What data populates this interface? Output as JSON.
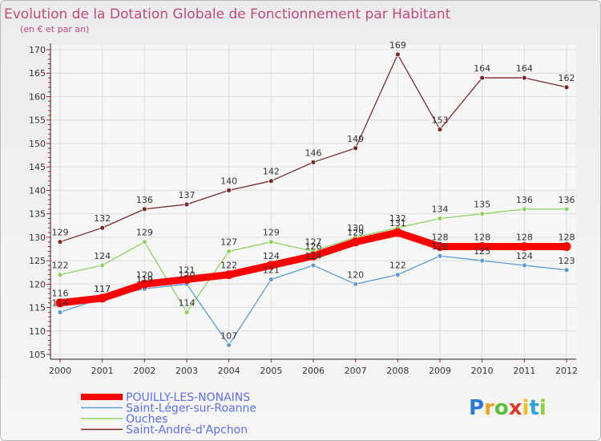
{
  "chart_data": {
    "type": "line",
    "title": "Evolution de la Dotation Globale de Fonctionnement par Habitant",
    "subtitle": "(en € et par an)",
    "xlabel": "",
    "ylabel": "",
    "ylim": [
      105,
      170
    ],
    "yticks": [
      105,
      110,
      115,
      120,
      125,
      130,
      135,
      140,
      145,
      150,
      155,
      160,
      165,
      170
    ],
    "categories": [
      "2000",
      "2001",
      "2002",
      "2003",
      "2004",
      "2005",
      "2006",
      "2007",
      "2008",
      "2009",
      "2010",
      "2011",
      "2012"
    ],
    "grid": true,
    "legend_position": "bottom-left",
    "series": [
      {
        "name": "Saint-André-d'Apchon",
        "color": "#7a2a2a",
        "values": [
          129,
          132,
          136,
          137,
          140,
          142,
          146,
          149,
          169,
          153,
          164,
          164,
          162
        ]
      },
      {
        "name": "Ouches",
        "color": "#8fd25f",
        "values": [
          122,
          124,
          129,
          114,
          127,
          129,
          127,
          130,
          132,
          134,
          135,
          136,
          136
        ]
      },
      {
        "name": "Saint-Léger-sur-Roanne",
        "color": "#5b9bd5",
        "values": [
          114,
          117,
          119,
          120,
          107,
          121,
          124,
          120,
          122,
          126,
          125,
          124,
          123
        ]
      },
      {
        "name": "POUILLY-LES-NONAINS",
        "color": "#ff0000",
        "values": [
          116,
          117,
          120,
          121,
          122,
          124,
          126,
          129,
          131,
          128,
          128,
          128,
          128
        ]
      }
    ],
    "legend": [
      {
        "name": "POUILLY-LES-NONAINS",
        "color": "#ff0000",
        "text_color": "#5b6ef0",
        "thick": true
      },
      {
        "name": "Saint-Léger-sur-Roanne",
        "color": "#5b9bd5",
        "text_color": "#5b6ef0",
        "thick": false
      },
      {
        "name": "Ouches",
        "color": "#8fd25f",
        "text_color": "#5b6ef0",
        "thick": false
      },
      {
        "name": "Saint-André-d'Apchon",
        "color": "#7a2a2a",
        "text_color": "#5b6ef0",
        "thick": false
      }
    ]
  },
  "logo": {
    "text": "Proxiti"
  }
}
